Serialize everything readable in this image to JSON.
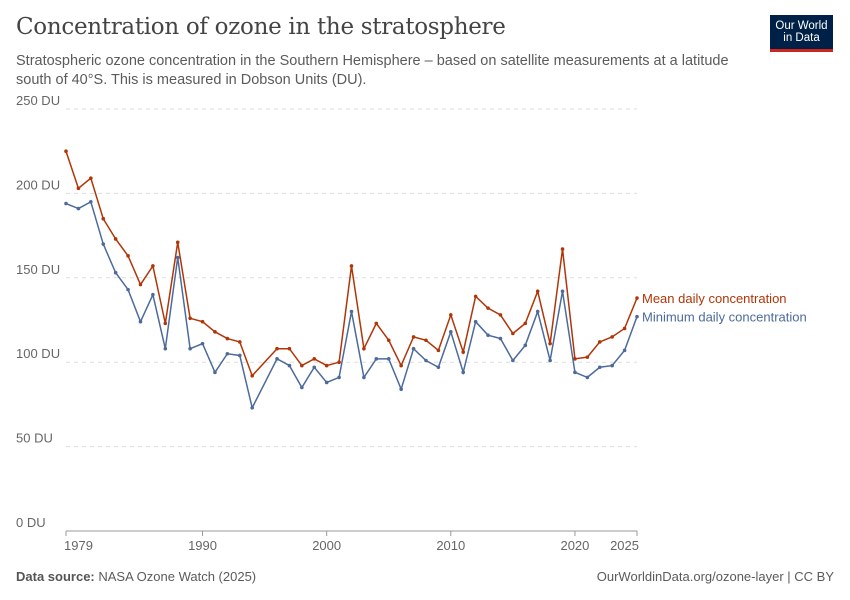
{
  "header": {
    "title": "Concentration of ozone in the stratosphere",
    "subtitle": "Stratospheric ozone concentration in the Southern Hemisphere – based on satellite measurements at a latitude south of 40°S. This is measured in Dobson Units (DU).",
    "logo": "Our World in Data"
  },
  "footer": {
    "source_label": "Data source:",
    "source": "NASA Ozone Watch (2025)",
    "credit": "OurWorldinData.org/ozone-layer | CC BY"
  },
  "chart_data": {
    "type": "line",
    "title": "Concentration of ozone in the stratosphere",
    "ylim": [
      0,
      250
    ],
    "xlim": [
      1979,
      2025
    ],
    "grid": "horizontal dashed",
    "legend": "right (line end labels)",
    "y_ticks": [
      "0 DU",
      "50 DU",
      "100 DU",
      "150 DU",
      "200 DU",
      "250 DU"
    ],
    "y_tick_values": [
      0,
      50,
      100,
      150,
      200,
      250
    ],
    "x_ticks": [
      "1979",
      "1990",
      "2000",
      "2010",
      "2020",
      "2025"
    ],
    "x_tick_values": [
      1979,
      1990,
      2000,
      2010,
      2020,
      2025
    ],
    "x": [
      1979,
      1980,
      1981,
      1982,
      1983,
      1984,
      1985,
      1986,
      1987,
      1988,
      1989,
      1990,
      1991,
      1992,
      1993,
      1994,
      1996,
      1997,
      1998,
      1999,
      2000,
      2001,
      2002,
      2003,
      2004,
      2005,
      2006,
      2007,
      2008,
      2009,
      2010,
      2011,
      2012,
      2013,
      2014,
      2015,
      2016,
      2017,
      2018,
      2019,
      2020,
      2021,
      2022,
      2023,
      2024,
      2025
    ],
    "series": [
      {
        "name": "Mean daily concentration",
        "color": "#b13507",
        "values": [
          225,
          203,
          209,
          185,
          173,
          163,
          146,
          157,
          123,
          171,
          126,
          124,
          118,
          114,
          112,
          92,
          108,
          108,
          98,
          102,
          98,
          100,
          157,
          108,
          123,
          113,
          98,
          115,
          113,
          107,
          128,
          106,
          139,
          132,
          128,
          117,
          123,
          142,
          111,
          167,
          102,
          103,
          112,
          115,
          120,
          138
        ]
      },
      {
        "name": "Minimum daily concentration",
        "color": "#4c6a9c",
        "values": [
          194,
          191,
          195,
          170,
          153,
          143,
          124,
          140,
          108,
          162,
          108,
          111,
          94,
          105,
          104,
          73,
          102,
          98,
          85,
          97,
          88,
          91,
          130,
          91,
          102,
          102,
          84,
          108,
          101,
          97,
          118,
          94,
          124,
          116,
          114,
          101,
          110,
          130,
          101,
          142,
          94,
          91,
          97,
          98,
          107,
          127
        ]
      }
    ]
  }
}
